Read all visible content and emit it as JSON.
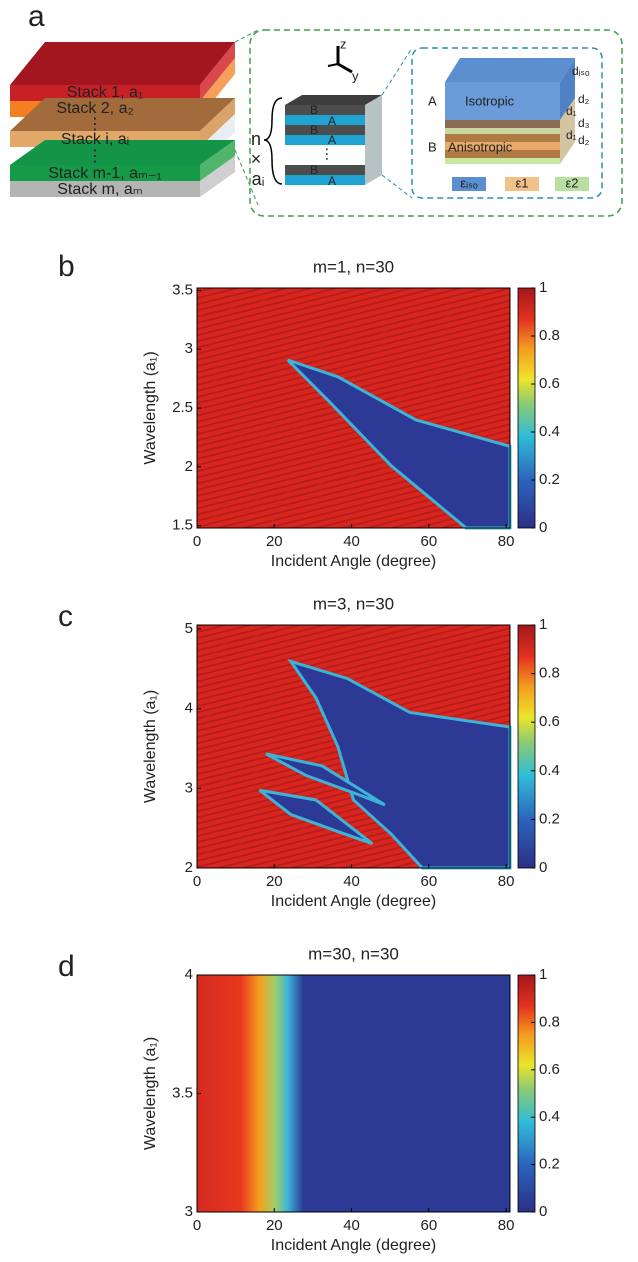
{
  "panel_labels": [
    "a",
    "b",
    "c",
    "d"
  ],
  "diagram": {
    "stacks": [
      "Stack 1, a₁",
      "Stack 2, a₂",
      "Stack i, aᵢ",
      "Stack m-1, aₘ₋₁",
      "Stack m, aₘ"
    ],
    "unit": {
      "axis_z": "z",
      "axis_y": "y",
      "n": "n",
      "times": "×",
      "ai": "aᵢ",
      "layers": [
        "B",
        "A",
        "B",
        "A",
        "B",
        "A"
      ]
    },
    "detail": {
      "A": "A",
      "B": "B",
      "isotropic": "Isotropic",
      "anisotropic": "Anisotropic",
      "dims": [
        "dᵢₛₒ",
        "d₂",
        "d₁",
        "d₃",
        "d₁",
        "d₂"
      ],
      "legend": [
        "εᵢₛₒ",
        "ε1",
        "ε2"
      ]
    }
  },
  "chart_data": [
    {
      "type": "heatmap",
      "title": "m=1, n=30",
      "x_label": "Incident Angle (degree)",
      "y_label": "Wavelength (a₁)",
      "xlim": [
        0,
        81
      ],
      "xticks": [
        0,
        20,
        40,
        60,
        80
      ],
      "ylim": [
        1.48,
        3.52
      ],
      "yticks": [
        1.5,
        2,
        2.5,
        3,
        3.5
      ],
      "colorbar": {
        "lim": [
          0,
          1
        ],
        "ticks": [
          0,
          0.2,
          0.4,
          0.6,
          0.8,
          1
        ]
      }
    },
    {
      "type": "heatmap",
      "title": "m=3, n=30",
      "x_label": "Incident Angle (degree)",
      "y_label": "Wavelength (a₁)",
      "xlim": [
        0,
        81
      ],
      "xticks": [
        0,
        20,
        40,
        60,
        80
      ],
      "ylim": [
        2,
        5.05
      ],
      "yticks": [
        2,
        3,
        4,
        5
      ],
      "colorbar": {
        "lim": [
          0,
          1
        ],
        "ticks": [
          0,
          0.2,
          0.4,
          0.6,
          0.8,
          1
        ]
      }
    },
    {
      "type": "heatmap",
      "title": "m=30, n=30",
      "x_label": "Incident Angle (degree)",
      "y_label": "Wavelength (a₁)",
      "xlim": [
        0,
        81
      ],
      "xticks": [
        0,
        20,
        40,
        60,
        80
      ],
      "ylim": [
        3,
        4
      ],
      "yticks": [
        3,
        3.5,
        4
      ],
      "colorbar": {
        "lim": [
          0,
          1
        ],
        "ticks": [
          0,
          0.2,
          0.4,
          0.6,
          0.8,
          1
        ]
      }
    }
  ]
}
